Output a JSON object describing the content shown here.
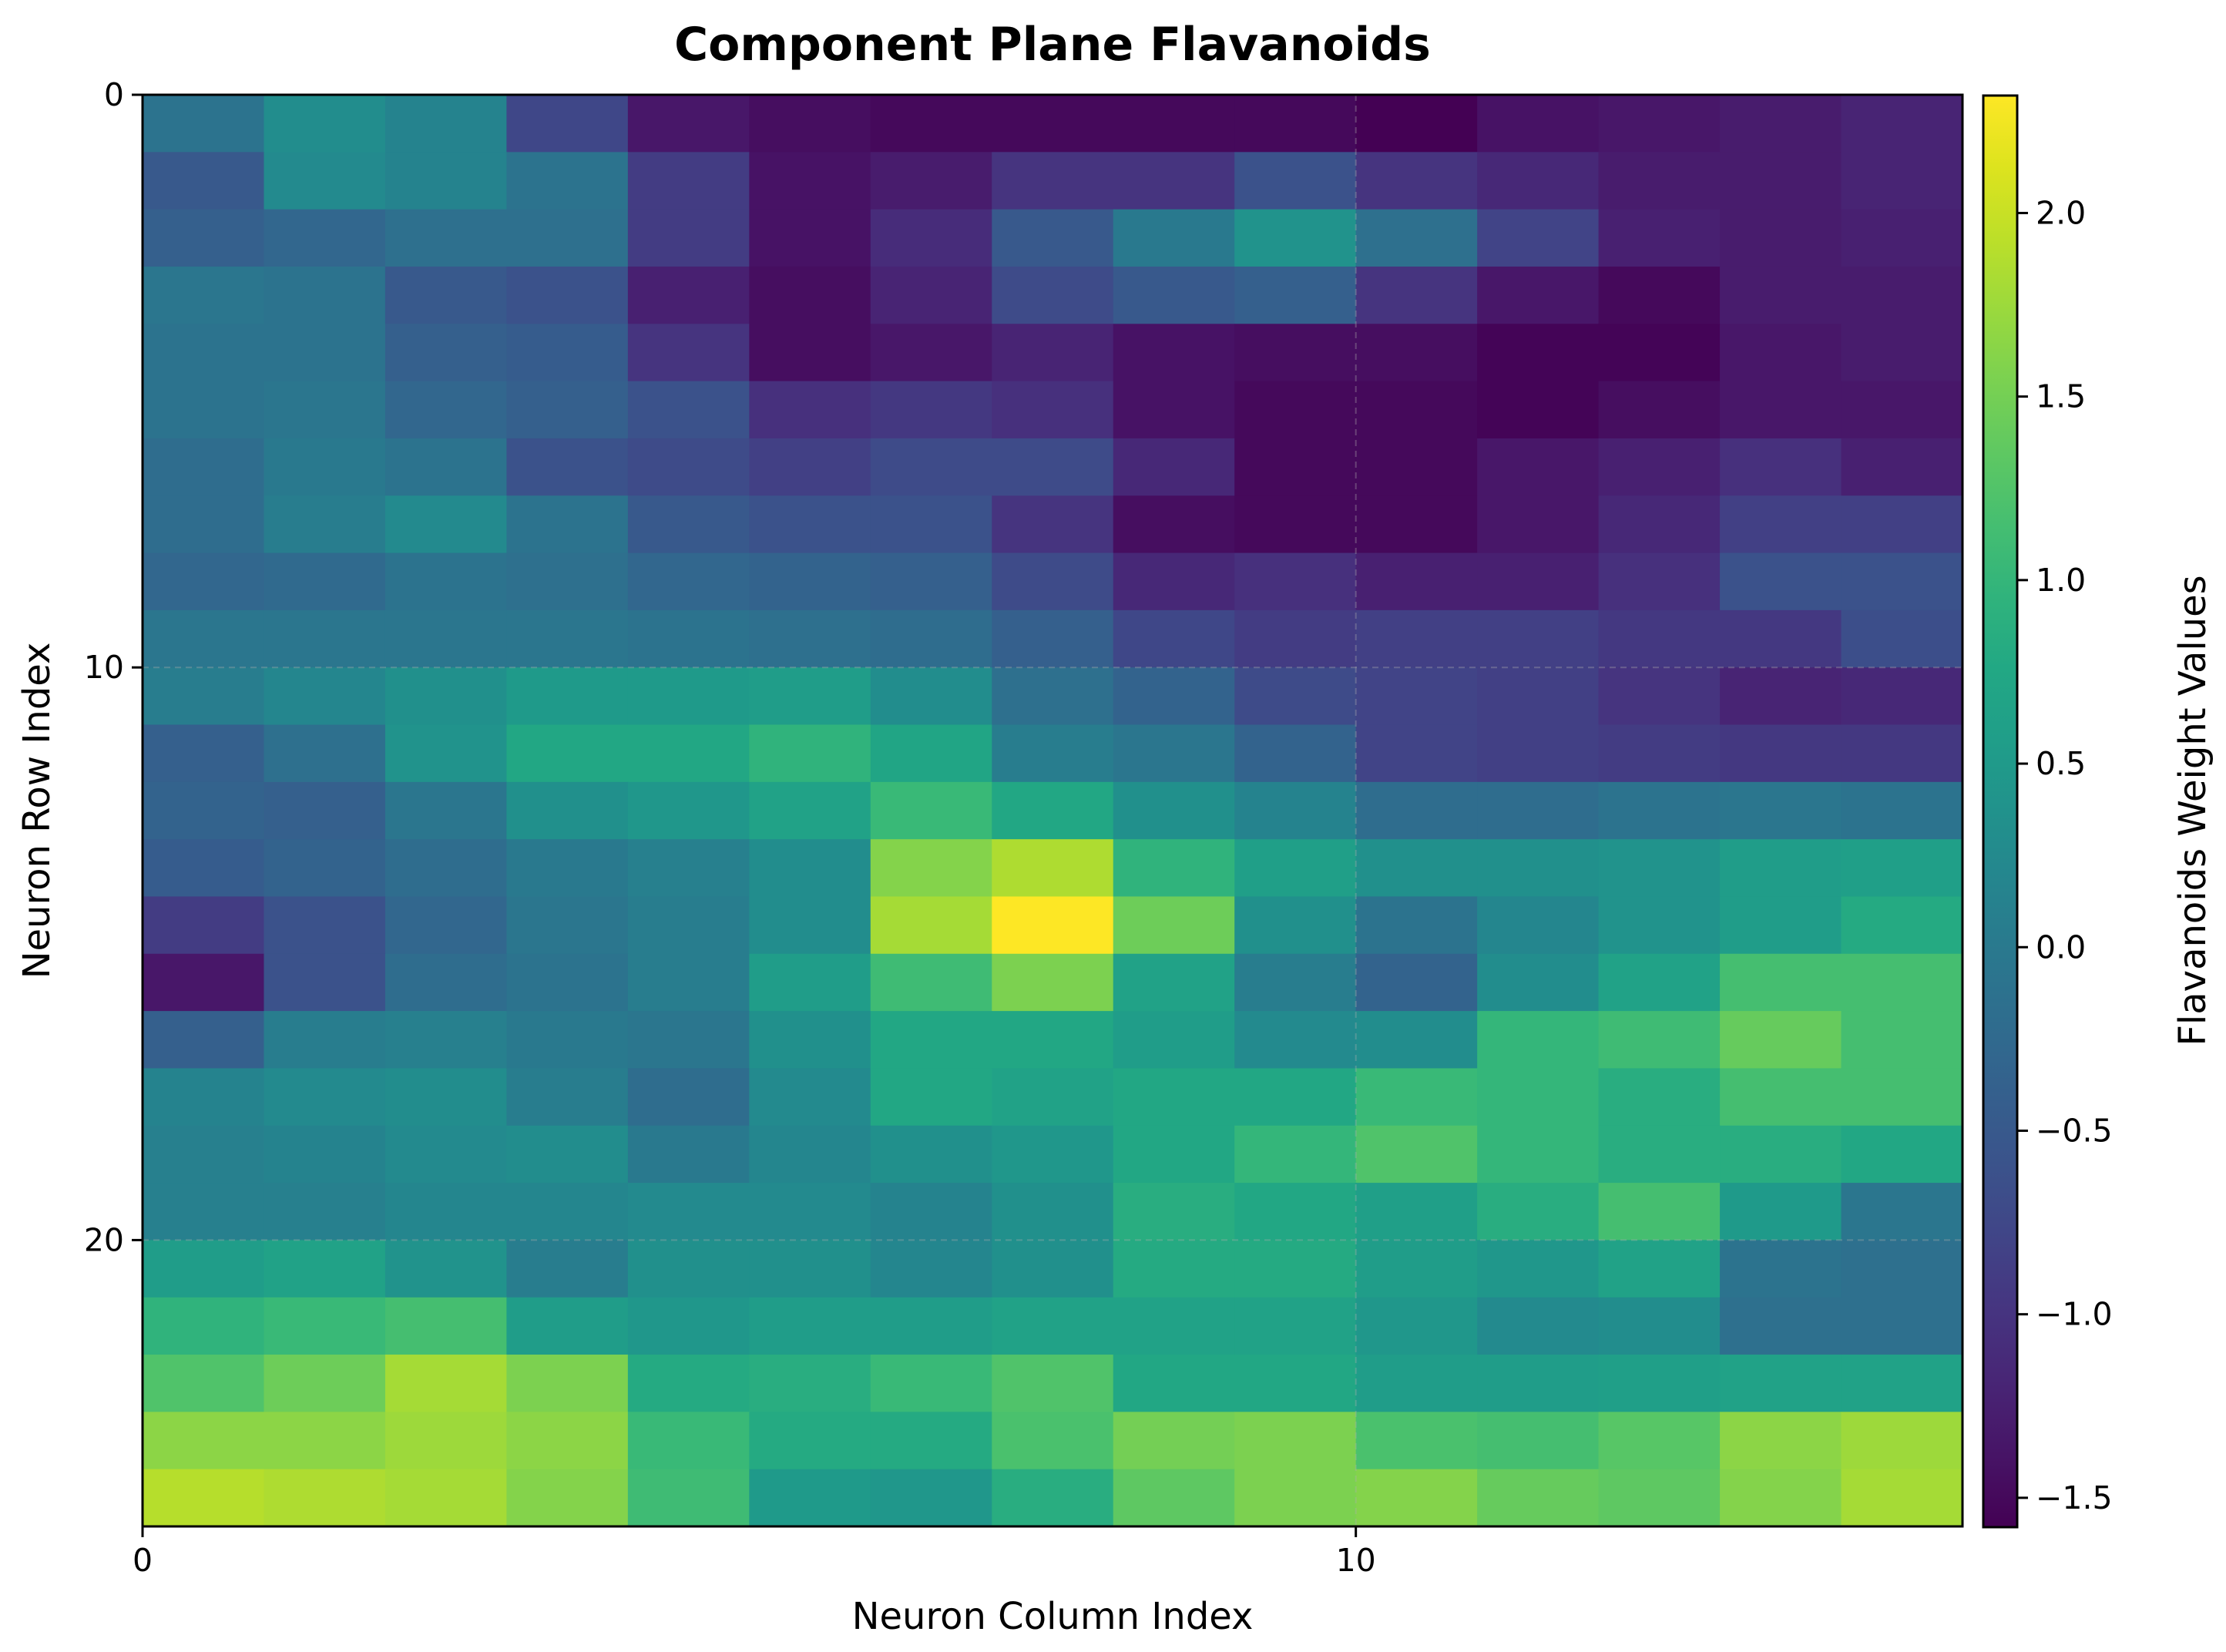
{
  "chart_data": {
    "type": "heatmap",
    "title": "Component Plane Flavanoids",
    "xlabel": "Neuron Column Index",
    "ylabel": "Neuron Row Index",
    "colorbar_label": "Flavanoids Weight Values",
    "colormap": "viridis",
    "n_rows": 25,
    "n_cols": 15,
    "vmin": -1.58,
    "vmax": 2.32,
    "x_ticks": [
      0,
      10
    ],
    "y_ticks": [
      0,
      10,
      20
    ],
    "colorbar_ticks": [
      2.0,
      1.5,
      1.0,
      0.5,
      0.0,
      -0.5,
      -1.0,
      -1.5
    ],
    "colorbar_tick_labels": [
      "2.0",
      "1.5",
      "1.0",
      "0.5",
      "0.0",
      "−0.5",
      "−1.0",
      "−1.5"
    ],
    "grid": true,
    "values": [
      [
        -0.1,
        0.3,
        0.15,
        -0.75,
        -1.35,
        -1.45,
        -1.5,
        -1.5,
        -1.5,
        -1.5,
        -1.58,
        -1.4,
        -1.35,
        -1.3,
        -1.2
      ],
      [
        -0.5,
        0.25,
        0.15,
        -0.1,
        -0.9,
        -1.4,
        -1.3,
        -1.0,
        -1.0,
        -0.6,
        -1.0,
        -1.15,
        -1.3,
        -1.3,
        -1.2
      ],
      [
        -0.4,
        -0.3,
        -0.15,
        -0.15,
        -0.9,
        -1.4,
        -1.1,
        -0.5,
        0.0,
        0.4,
        -0.15,
        -0.8,
        -1.25,
        -1.3,
        -1.25
      ],
      [
        -0.05,
        -0.1,
        -0.5,
        -0.6,
        -1.25,
        -1.45,
        -1.2,
        -0.7,
        -0.5,
        -0.4,
        -1.0,
        -1.35,
        -1.5,
        -1.3,
        -1.3
      ],
      [
        -0.1,
        -0.1,
        -0.4,
        -0.45,
        -1.0,
        -1.45,
        -1.35,
        -1.2,
        -1.4,
        -1.45,
        -1.45,
        -1.55,
        -1.55,
        -1.35,
        -1.3
      ],
      [
        -0.1,
        -0.05,
        -0.3,
        -0.4,
        -0.6,
        -1.05,
        -0.95,
        -1.05,
        -1.4,
        -1.5,
        -1.5,
        -1.55,
        -1.45,
        -1.35,
        -1.35
      ],
      [
        -0.2,
        0.0,
        -0.1,
        -0.6,
        -0.7,
        -0.85,
        -0.7,
        -0.7,
        -1.15,
        -1.5,
        -1.5,
        -1.35,
        -1.25,
        -1.05,
        -1.25
      ],
      [
        -0.2,
        0.05,
        0.25,
        -0.1,
        -0.5,
        -0.6,
        -0.6,
        -1.0,
        -1.45,
        -1.5,
        -1.5,
        -1.35,
        -1.15,
        -0.85,
        -0.85
      ],
      [
        -0.3,
        -0.25,
        -0.1,
        -0.15,
        -0.3,
        -0.35,
        -0.4,
        -0.7,
        -1.15,
        -1.05,
        -1.25,
        -1.25,
        -1.05,
        -0.6,
        -0.6
      ],
      [
        -0.05,
        -0.05,
        -0.05,
        -0.05,
        -0.1,
        -0.15,
        -0.2,
        -0.4,
        -0.75,
        -0.9,
        -0.85,
        -0.85,
        -0.95,
        -0.95,
        -0.65
      ],
      [
        0.05,
        0.2,
        0.35,
        0.5,
        0.5,
        0.55,
        0.3,
        -0.15,
        -0.35,
        -0.7,
        -0.8,
        -0.85,
        -1.0,
        -1.2,
        -1.15
      ],
      [
        -0.4,
        -0.15,
        0.4,
        0.75,
        0.75,
        0.95,
        0.7,
        0.05,
        -0.05,
        -0.35,
        -0.8,
        -0.85,
        -0.9,
        -0.95,
        -0.95
      ],
      [
        -0.35,
        -0.4,
        -0.05,
        0.35,
        0.45,
        0.65,
        1.05,
        0.75,
        0.35,
        0.15,
        -0.2,
        -0.2,
        -0.1,
        -0.05,
        -0.1
      ],
      [
        -0.45,
        -0.35,
        -0.2,
        0.0,
        0.1,
        0.3,
        1.6,
        1.85,
        0.95,
        0.6,
        0.35,
        0.35,
        0.4,
        0.55,
        0.6
      ],
      [
        -0.9,
        -0.6,
        -0.3,
        -0.05,
        0.05,
        0.3,
        1.8,
        2.32,
        1.45,
        0.35,
        -0.1,
        0.2,
        0.4,
        0.55,
        0.8
      ],
      [
        -1.35,
        -0.6,
        -0.2,
        -0.1,
        0.05,
        0.55,
        1.1,
        1.55,
        0.65,
        0.05,
        -0.35,
        0.3,
        0.65,
        1.15,
        1.15
      ],
      [
        -0.4,
        0.05,
        0.1,
        0.0,
        -0.05,
        0.35,
        0.75,
        0.75,
        0.55,
        0.25,
        0.3,
        1.0,
        1.1,
        1.4,
        1.15
      ],
      [
        0.15,
        0.25,
        0.3,
        0.05,
        -0.2,
        0.25,
        0.75,
        0.65,
        0.75,
        0.75,
        1.05,
        1.0,
        0.85,
        1.15,
        1.15
      ],
      [
        0.1,
        0.15,
        0.25,
        0.3,
        0.0,
        0.2,
        0.35,
        0.45,
        0.75,
        1.0,
        1.25,
        1.0,
        0.85,
        0.85,
        0.75
      ],
      [
        0.1,
        0.1,
        0.2,
        0.2,
        0.25,
        0.25,
        0.15,
        0.35,
        0.85,
        0.75,
        0.6,
        0.85,
        1.15,
        0.5,
        -0.05
      ],
      [
        0.55,
        0.65,
        0.4,
        0.05,
        0.35,
        0.35,
        0.2,
        0.35,
        0.8,
        0.8,
        0.55,
        0.45,
        0.65,
        -0.1,
        -0.15
      ],
      [
        0.95,
        1.05,
        1.15,
        0.55,
        0.45,
        0.55,
        0.55,
        0.65,
        0.65,
        0.65,
        0.45,
        0.25,
        0.3,
        -0.15,
        -0.15
      ],
      [
        1.25,
        1.45,
        1.8,
        1.55,
        0.8,
        0.85,
        1.05,
        1.25,
        0.75,
        0.75,
        0.55,
        0.55,
        0.6,
        0.65,
        0.65
      ],
      [
        1.65,
        1.65,
        1.75,
        1.65,
        1.05,
        0.8,
        0.8,
        1.2,
        1.5,
        1.55,
        1.2,
        1.15,
        1.3,
        1.65,
        1.75
      ],
      [
        1.9,
        1.85,
        1.8,
        1.6,
        1.1,
        0.5,
        0.45,
        0.85,
        1.35,
        1.55,
        1.6,
        1.4,
        1.35,
        1.6,
        1.8
      ]
    ]
  }
}
